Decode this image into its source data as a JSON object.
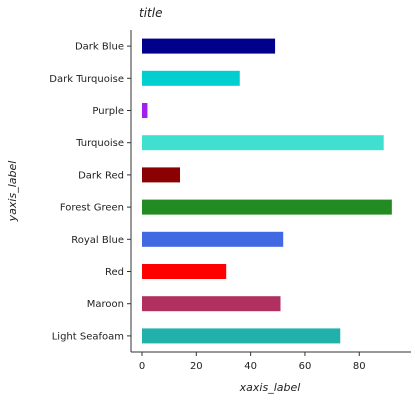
{
  "chart_data": {
    "type": "bar",
    "orientation": "horizontal",
    "title": "title",
    "xlabel": "xaxis_label",
    "ylabel": "yaxis_label",
    "xlim": [
      0,
      95
    ],
    "xticks": [
      0,
      20,
      40,
      60,
      80
    ],
    "grid": false,
    "categories": [
      "Light Seafoam",
      "Maroon",
      "Red",
      "Royal Blue",
      "Forest Green",
      "Dark Red",
      "Turquoise",
      "Purple",
      "Dark Turquoise",
      "Dark Blue"
    ],
    "values": [
      73,
      51,
      31,
      52,
      92,
      14,
      89,
      2,
      36,
      49
    ],
    "colors": [
      "#20b2aa",
      "#b03060",
      "#ff0000",
      "#4169e1",
      "#228b22",
      "#8b0000",
      "#40e0d0",
      "#a020f0",
      "#00ced1",
      "#00008b"
    ]
  }
}
